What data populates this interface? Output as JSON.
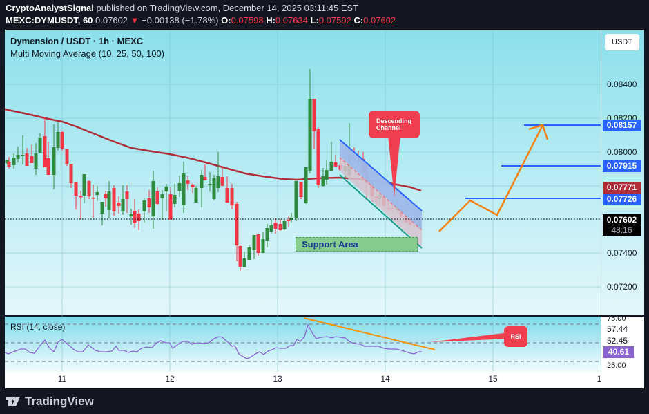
{
  "header": {
    "author": "CryptoAnalystSignal",
    "published_text": " published on TradingView.com, December 14, 2025 03:11:45 EST",
    "symbol": "MEXC:DYMUSDT, 60",
    "last": "0.07602",
    "change": "−0.00138 (−1.78%)",
    "o_label": "O:",
    "o": "0.07598",
    "h_label": "H:",
    "h": "0.07634",
    "l_label": "L:",
    "l": "0.07592",
    "c_label": "C:",
    "c": "0.07602"
  },
  "legend": {
    "title": "Dymension / USDT · 1h · MEXC",
    "indicator": "Multi Moving Average (10, 25, 50, 100)",
    "rsi": "RSI (14, close)"
  },
  "price_axis": {
    "currency": "USDT",
    "ticks": [
      "0.08400",
      "0.08200",
      "0.08000",
      "0.07400",
      "0.07200"
    ],
    "labels": {
      "target3": "0.08157",
      "target2": "0.07915",
      "ma": "0.07771",
      "target1": "0.07726",
      "current": "0.07602",
      "countdown": "48:16"
    }
  },
  "rsi_axis": {
    "ticks": [
      "75.00",
      "57.44",
      "52.45",
      "25.00"
    ],
    "current": "40.61"
  },
  "time_axis": [
    "11",
    "12",
    "13",
    "14",
    "15",
    "1"
  ],
  "annotations": {
    "descending_channel": [
      "Descending",
      "Channel"
    ],
    "support_area": "Support Area",
    "rsi_note": "RSI"
  },
  "footer": {
    "brand": "TradingView"
  },
  "colors": {
    "up": "#2e8b3e",
    "down": "#f23645",
    "ma": "#b22d3a",
    "target_line": "#2962ff",
    "projection": "#f5820f",
    "rsi_line": "#8a63d2",
    "note": "#f23f4f"
  },
  "chart_data": {
    "type": "candlestick",
    "title": "Dymension / USDT · 1h · MEXC",
    "xlabel": "",
    "ylabel": "USDT",
    "x_ticks": [
      "11",
      "12",
      "13",
      "14",
      "15"
    ],
    "ylim": [
      0.0712,
      0.0856
    ],
    "y_ticks": [
      0.072,
      0.074,
      0.076,
      0.078,
      0.08,
      0.082,
      0.084
    ],
    "current_price": 0.07602,
    "ohlc_last": {
      "open": 0.07598,
      "high": 0.07634,
      "low": 0.07592,
      "close": 0.07602
    },
    "moving_average_last": 0.07771,
    "target_levels": [
      0.07726,
      0.07915,
      0.08157
    ],
    "support_area": [
      0.0742,
      0.0749
    ],
    "descending_channel": {
      "upper": [
        [
          0.0806,
          "Dec 13 ~14:00"
        ],
        [
          0.0765,
          "Dec 14 ~08:00"
        ]
      ],
      "lower": [
        [
          0.0784,
          "Dec 13 ~14:00"
        ],
        [
          0.0744,
          "Dec 14 ~08:00"
        ]
      ]
    },
    "projection_path": [
      0.0749,
      0.0772,
      0.0764,
      0.0816
    ],
    "rsi": {
      "period": 14,
      "current": 40.61,
      "levels": [
        75.0,
        57.44,
        52.45,
        25.0
      ],
      "peak": 70
    }
  }
}
